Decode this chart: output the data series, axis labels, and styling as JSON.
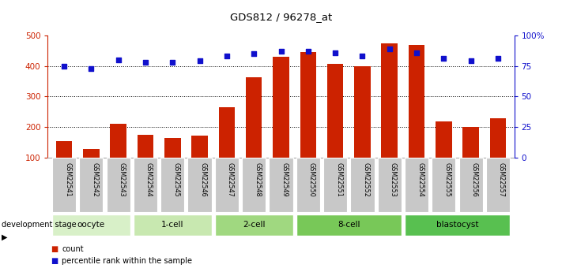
{
  "title": "GDS812 / 96278_at",
  "samples": [
    "GSM22541",
    "GSM22542",
    "GSM22543",
    "GSM22544",
    "GSM22545",
    "GSM22546",
    "GSM22547",
    "GSM22548",
    "GSM22549",
    "GSM22550",
    "GSM22551",
    "GSM22552",
    "GSM22553",
    "GSM22554",
    "GSM22555",
    "GSM22556",
    "GSM22557"
  ],
  "counts": [
    155,
    128,
    210,
    175,
    165,
    172,
    265,
    362,
    430,
    445,
    408,
    398,
    475,
    468,
    220,
    200,
    228
  ],
  "percentiles": [
    75,
    73,
    80,
    78,
    78,
    79,
    83,
    85,
    87,
    87,
    86,
    83,
    89,
    86,
    81,
    79,
    81
  ],
  "groups": [
    {
      "label": "oocyte",
      "start": 0,
      "end": 3,
      "color": "#d8f0c8"
    },
    {
      "label": "1-cell",
      "start": 3,
      "end": 6,
      "color": "#c8e8b0"
    },
    {
      "label": "2-cell",
      "start": 6,
      "end": 9,
      "color": "#a0d880"
    },
    {
      "label": "8-cell",
      "start": 9,
      "end": 13,
      "color": "#78c858"
    },
    {
      "label": "blastocyst",
      "start": 13,
      "end": 17,
      "color": "#58c050"
    }
  ],
  "bar_color": "#cc2200",
  "dot_color": "#1010cc",
  "ylim_left": [
    100,
    500
  ],
  "ylim_right": [
    0,
    100
  ],
  "yticks_left": [
    100,
    200,
    300,
    400,
    500
  ],
  "yticks_right": [
    0,
    25,
    50,
    75,
    100
  ],
  "yticklabels_right": [
    "0",
    "25",
    "50",
    "75",
    "100%"
  ],
  "grid_values": [
    200,
    300,
    400
  ],
  "ylabel_left_color": "#cc2200",
  "ylabel_right_color": "#1010cc",
  "legend_count_label": "count",
  "legend_pct_label": "percentile rank within the sample",
  "dev_stage_label": "development stage",
  "background_color": "#ffffff",
  "tick_label_bg": "#c8c8c8"
}
